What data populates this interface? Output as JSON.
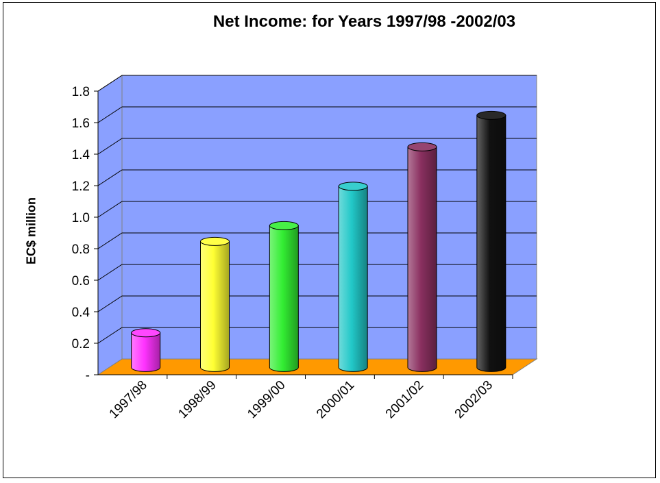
{
  "chart_data": {
    "type": "bar",
    "title": "Net Income: for Years 1997/98 -2002/03",
    "xlabel": "",
    "ylabel": "EC$ million",
    "categories": [
      "1997/98",
      "1998/99",
      "1999/00",
      "2000/01",
      "2001/02",
      "2002/03"
    ],
    "values": [
      0.22,
      0.8,
      0.9,
      1.15,
      1.4,
      1.6
    ],
    "ylim": [
      0,
      1.8
    ],
    "yticks": [
      "-",
      "0.2",
      "0.4",
      "0.6",
      "0.8",
      "1.0",
      "1.2",
      "1.4",
      "1.6",
      "1.8"
    ],
    "grid": true,
    "legend": "none",
    "bar_colors": [
      "#ff33ff",
      "#ffff33",
      "#33ee33",
      "#22c8c8",
      "#8a3060",
      "#111111"
    ],
    "wall_color": "#8aa0ff",
    "floor_color": "#ff9900"
  }
}
